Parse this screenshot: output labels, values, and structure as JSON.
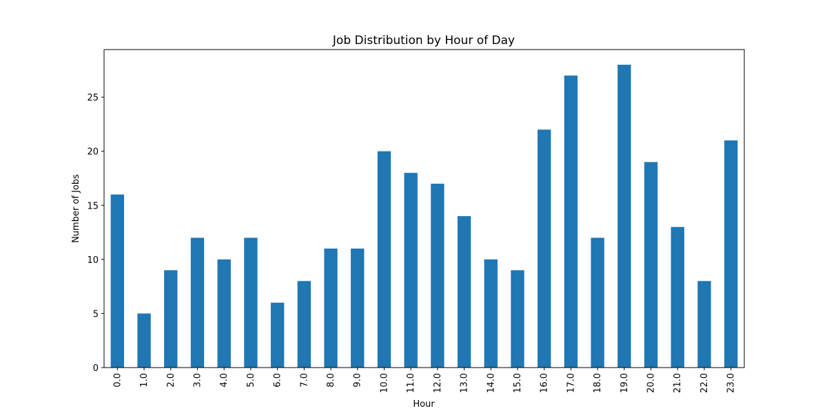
{
  "chart_data": {
    "type": "bar",
    "title": "Job Distribution by Hour of Day",
    "xlabel": "Hour",
    "ylabel": "Number of Jobs",
    "categories": [
      "0.0",
      "1.0",
      "2.0",
      "3.0",
      "4.0",
      "5.0",
      "6.0",
      "7.0",
      "8.0",
      "9.0",
      "10.0",
      "11.0",
      "12.0",
      "13.0",
      "14.0",
      "15.0",
      "16.0",
      "17.0",
      "18.0",
      "19.0",
      "20.0",
      "21.0",
      "22.0",
      "23.0"
    ],
    "values": [
      16,
      5,
      9,
      12,
      10,
      12,
      6,
      8,
      11,
      11,
      20,
      18,
      17,
      14,
      10,
      9,
      22,
      27,
      12,
      28,
      19,
      13,
      8,
      21
    ],
    "ylim": [
      0,
      29.4
    ],
    "yticks": [
      0,
      5,
      10,
      15,
      20,
      25
    ],
    "bar_color": "#1f77b4",
    "grid": false,
    "legend": "none"
  }
}
